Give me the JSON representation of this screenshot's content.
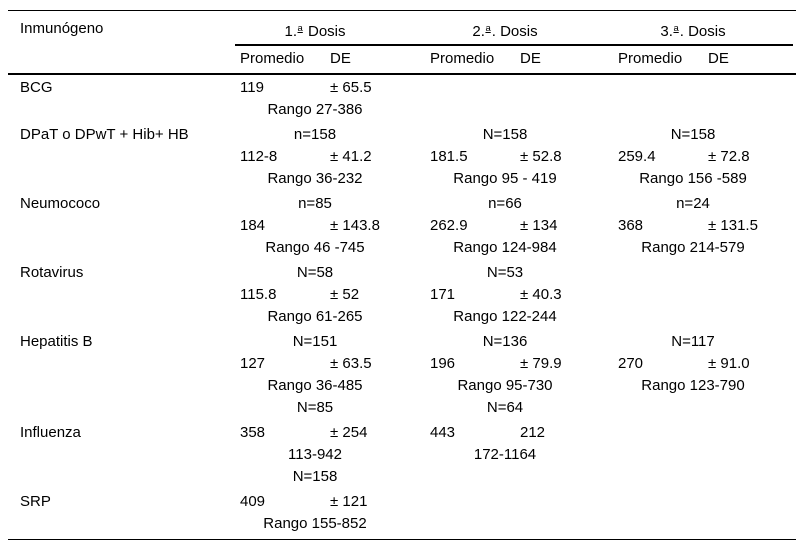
{
  "page": {
    "bg": "#ffffff",
    "text_color": "#000000",
    "rule_color": "#000000"
  },
  "table": {
    "corner_header": "Inmunógeno",
    "dose_headers": [
      {
        "pre": "1.",
        "sup": "a",
        "post": " Dosis"
      },
      {
        "pre": "2.",
        "sup": "a",
        "post": ". Dosis"
      },
      {
        "pre": "3.",
        "sup": "a",
        "post": ". Dosis"
      }
    ],
    "sub_headers": {
      "promedio": "Promedio",
      "de": "DE"
    },
    "rows": [
      {
        "label": "BCG",
        "cells": [
          [
            {
              "v": "119",
              "de": "± 65.5"
            },
            {
              "c": "Rango 27-386"
            }
          ],
          [],
          []
        ]
      },
      {
        "label": "DPaT o DPwT + Hib+ HB",
        "cells": [
          [
            {
              "c": "n=158"
            },
            {
              "v": "112-8",
              "de": "± 41.2"
            },
            {
              "c": "Rango 36-232"
            }
          ],
          [
            {
              "c": "N=158"
            },
            {
              "v": "181.5",
              "de": "± 52.8"
            },
            {
              "c": "Rango 95 - 419"
            }
          ],
          [
            {
              "c": "N=158"
            },
            {
              "v": "259.4",
              "de": "± 72.8"
            },
            {
              "c": "Rango 156 -589"
            }
          ]
        ]
      },
      {
        "label": "Neumococo",
        "cells": [
          [
            {
              "c": "n=85"
            },
            {
              "v": "184",
              "de": "± 143.8"
            },
            {
              "c": "Rango 46 -745"
            }
          ],
          [
            {
              "c": "n=66"
            },
            {
              "v": "262.9",
              "de": "± 134"
            },
            {
              "c": "Rango 124-984"
            }
          ],
          [
            {
              "c": "n=24"
            },
            {
              "v": "368",
              "de": "± 131.5"
            },
            {
              "c": "Rango 214-579"
            }
          ]
        ]
      },
      {
        "label": "Rotavirus",
        "cells": [
          [
            {
              "c": "N=58"
            },
            {
              "v": "115.8",
              "de": "± 52"
            },
            {
              "c": "Rango 61-265"
            }
          ],
          [
            {
              "c": "N=53"
            },
            {
              "v": "171",
              "de": "± 40.3"
            },
            {
              "c": "Rango 122-244"
            }
          ],
          []
        ]
      },
      {
        "label": "Hepatitis B",
        "cells": [
          [
            {
              "c": "N=151"
            },
            {
              "v": "127",
              "de": "± 63.5"
            },
            {
              "c": "Rango 36-485"
            },
            {
              "c": "N=85"
            }
          ],
          [
            {
              "c": "N=136"
            },
            {
              "v": "196",
              "de": "± 79.9"
            },
            {
              "c": "Rango 95-730"
            },
            {
              "c": "N=64"
            }
          ],
          [
            {
              "c": "N=117"
            },
            {
              "v": "270",
              "de": "± 91.0"
            },
            {
              "c": "Rango 123-790"
            }
          ]
        ]
      },
      {
        "label": "Influenza",
        "cells": [
          [
            {
              "v": "358",
              "de": "± 254"
            },
            {
              "c": "113-942"
            },
            {
              "c": "N=158"
            }
          ],
          [
            {
              "v": "443",
              "de": "212"
            },
            {
              "c": "172-1164"
            }
          ],
          []
        ]
      },
      {
        "label": "SRP",
        "cells": [
          [
            {
              "v": "409",
              "de": "± 121"
            },
            {
              "c": "Rango 155-852"
            }
          ],
          [],
          []
        ]
      }
    ]
  }
}
